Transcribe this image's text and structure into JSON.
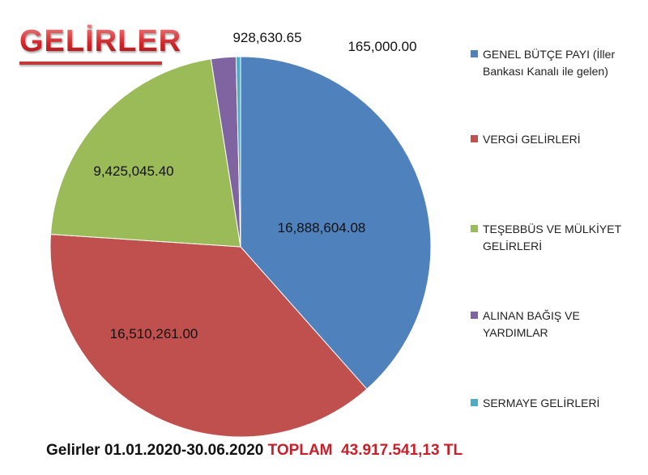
{
  "chart_data": {
    "type": "pie",
    "title": "GELİRLER",
    "start_angle": "12 o'clock, clockwise",
    "legend_position": "right",
    "categories": [
      "GENEL BÜTÇE PAYI (İller Bankası Kanalı ile gelen)",
      "VERGİ GELİRLERİ",
      "TEŞEBBÜS  VE MÜLKİYET GELİRLERİ",
      "ALINAN BAĞIŞ VE YARDIMLAR",
      "SERMAYE GELİRLERİ"
    ],
    "values": [
      16888604.08,
      16510261.0,
      9425045.4,
      928630.65,
      165000.0
    ],
    "data_labels": [
      "16,888,604.08",
      "16,510,261.00",
      "9,425,045.40",
      "928,630.65",
      "165,000.00"
    ],
    "colors": [
      "#4F81BD",
      "#C0504D",
      "#9BBB59",
      "#8064A2",
      "#4BACC6"
    ]
  },
  "footer": {
    "period": "Gelirler 01.01.2020-30.06.2020",
    "total_label": "TOPLAM",
    "total_value": "43.917.541,13 TL"
  }
}
